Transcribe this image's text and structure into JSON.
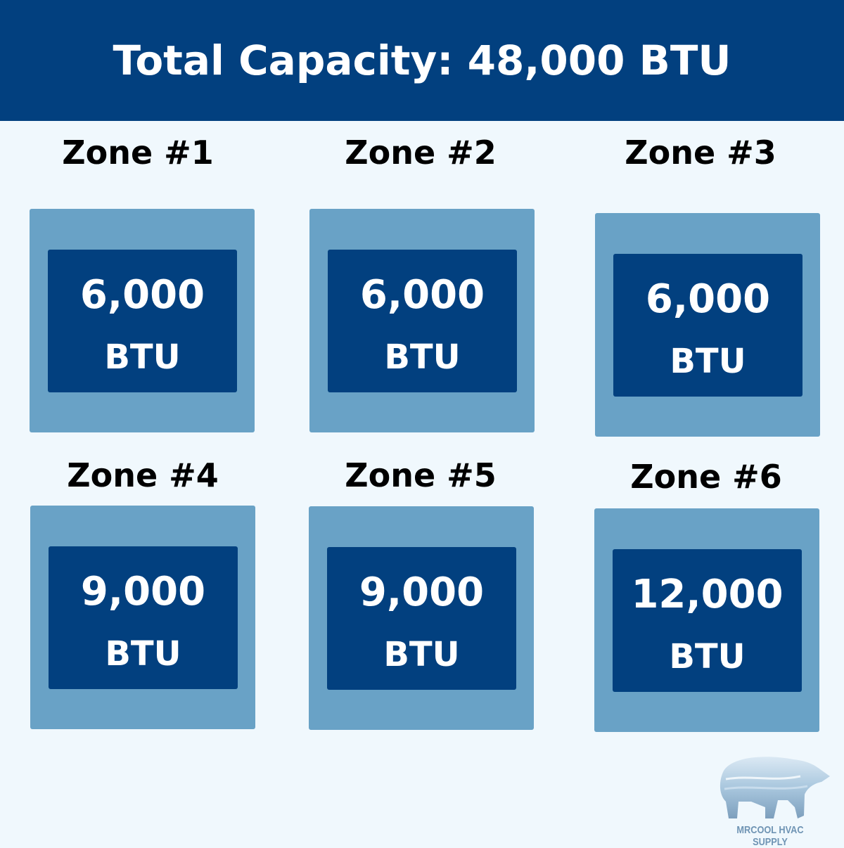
{
  "header": {
    "title": "Total Capacity: 48,000 BTU"
  },
  "zones": [
    {
      "label": "Zone #1",
      "value": "6,000",
      "unit": "BTU"
    },
    {
      "label": "Zone #2",
      "value": "6,000",
      "unit": "BTU"
    },
    {
      "label": "Zone #3",
      "value": "6,000",
      "unit": "BTU"
    },
    {
      "label": "Zone #4",
      "value": "9,000",
      "unit": "BTU"
    },
    {
      "label": "Zone #5",
      "value": "9,000",
      "unit": "BTU"
    },
    {
      "label": "Zone #6",
      "value": "12,000",
      "unit": "BTU"
    }
  ],
  "logo": {
    "text": "MRCOOL HVAC SUPPLY",
    "icon": "polar-bear-icon"
  },
  "colors": {
    "header": "#02407f",
    "outer_box": "#69a2c6",
    "inner_box": "#02407f",
    "background": "#f0f8fd"
  }
}
